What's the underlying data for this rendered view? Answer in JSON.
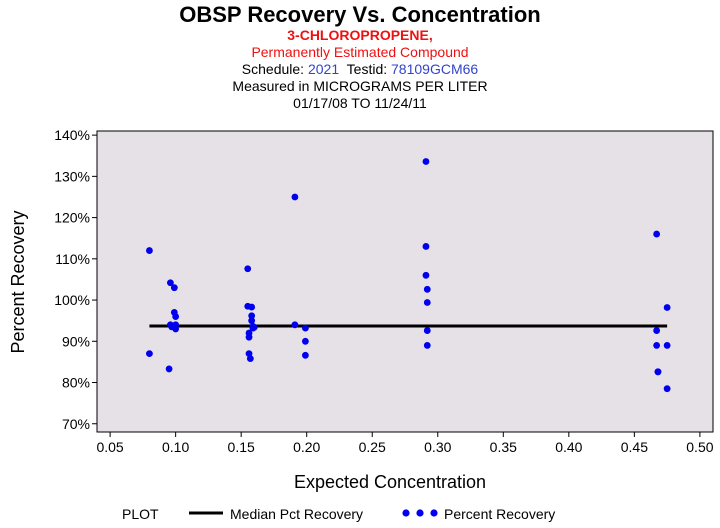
{
  "header": {
    "title": "OBSP Recovery Vs. Concentration",
    "compound": "3-CHLOROPROPENE,",
    "note": "Permanently Estimated Compound",
    "schedule_label": "Schedule:",
    "schedule": "2021",
    "testid_label": "Testid:",
    "testid": "78109GCM66",
    "measured": "Measured in  MICROGRAMS PER LITER",
    "dates": "01/17/08 TO 11/24/11"
  },
  "legend": {
    "plot_label": "PLOT",
    "median_label": "Median Pct Recovery",
    "recovery_label": "Percent Recovery"
  },
  "colors": {
    "plot_bg": "#e6e1e6",
    "points": "#0000ee",
    "median": "#000000",
    "title_red": "#ee1111",
    "link_blue": "#3344cc"
  },
  "chart_data": {
    "type": "scatter",
    "title": "OBSP Recovery Vs. Concentration",
    "xlabel": "Expected Concentration",
    "ylabel": "Percent Recovery",
    "xlim": [
      0.04,
      0.51
    ],
    "ylim": [
      68,
      141
    ],
    "xticks": [
      0.05,
      0.1,
      0.15,
      0.2,
      0.25,
      0.3,
      0.35,
      0.4,
      0.45,
      0.5
    ],
    "xtick_labels": [
      "0.05",
      "0.10",
      "0.15",
      "0.20",
      "0.25",
      "0.30",
      "0.35",
      "0.40",
      "0.45",
      "0.50"
    ],
    "yticks": [
      70,
      80,
      90,
      100,
      110,
      120,
      130,
      140
    ],
    "ytick_labels": [
      "70%",
      "80%",
      "90%",
      "100%",
      "110%",
      "120%",
      "130%",
      "140%"
    ],
    "series": [
      {
        "name": "Percent Recovery",
        "x": [
          0.08,
          0.08,
          0.095,
          0.096,
          0.096,
          0.097,
          0.099,
          0.099,
          0.1,
          0.1,
          0.1,
          0.155,
          0.155,
          0.156,
          0.156,
          0.156,
          0.157,
          0.158,
          0.158,
          0.158,
          0.159,
          0.159,
          0.16,
          0.191,
          0.191,
          0.199,
          0.199,
          0.199,
          0.291,
          0.291,
          0.291,
          0.292,
          0.292,
          0.292,
          0.292,
          0.467,
          0.467,
          0.467,
          0.468,
          0.468,
          0.475,
          0.475,
          0.475
        ],
        "y": [
          112,
          87,
          83.3,
          104.2,
          94,
          93.5,
          103,
          97,
          96,
          94,
          93,
          107.6,
          98.5,
          92,
          91,
          87,
          85.8,
          98.3,
          96.2,
          95,
          93.6,
          93.2,
          93.4,
          125,
          94,
          93.2,
          90,
          86.6,
          133.6,
          113,
          106,
          102.6,
          99.4,
          92.6,
          89,
          116,
          92.6,
          89,
          82.6,
          82.6,
          98.2,
          89,
          78.5
        ]
      },
      {
        "name": "Median Pct Recovery",
        "x": [
          0.08,
          0.475
        ],
        "y": [
          93.7,
          93.7
        ]
      }
    ]
  }
}
